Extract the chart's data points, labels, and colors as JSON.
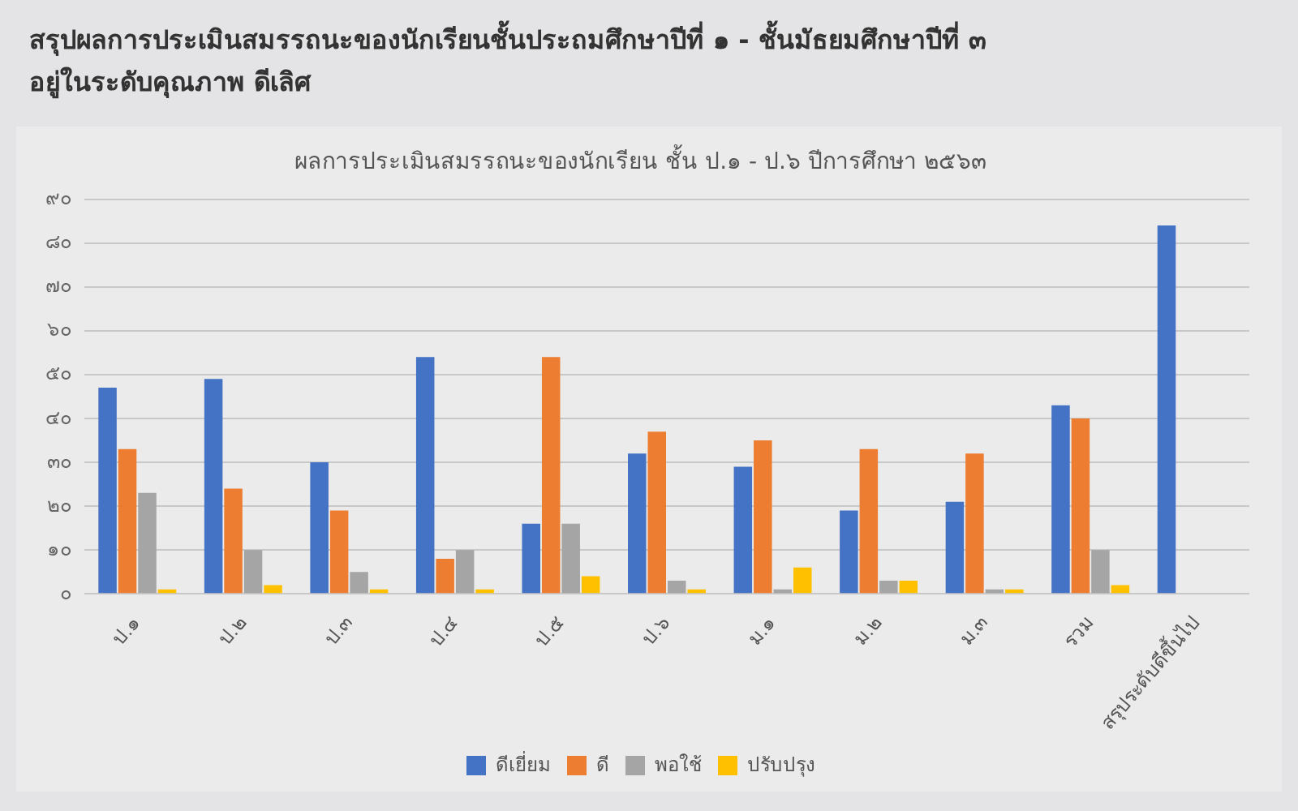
{
  "chart_data": {
    "type": "bar",
    "title": "ผลการประเมินสมรรถนะของนักเรียน ชั้น ป.๑ - ป.๖ ปีการศึกษา ๒๕๖๓",
    "annotations": [
      "สรุปผลการประเมินสมรรถนะของนักเรียนชั้นประถมศึกษาปีที่ ๑ - ชั้นมัธยมศึกษาปีที่ ๓",
      "อยู่ในระดับคุณภาพ ดีเลิศ"
    ],
    "categories": [
      "ป.๑",
      "ป.๒",
      "ป.๓",
      "ป.๔",
      "ป.๕",
      "ป.๖",
      "ม.๑",
      "ม.๒",
      "ม.๓",
      "รวม",
      "สรุประดับดีขึ้นไป"
    ],
    "series": [
      {
        "name": "ดีเยี่ยม",
        "color": "#4472c4",
        "values": [
          47,
          49,
          30,
          54,
          16,
          32,
          29,
          19,
          21,
          43,
          84
        ]
      },
      {
        "name": "ดี",
        "color": "#ed7d31",
        "values": [
          33,
          24,
          19,
          8,
          54,
          37,
          35,
          33,
          32,
          40,
          null
        ]
      },
      {
        "name": "พอใช้",
        "color": "#a5a5a5",
        "values": [
          23,
          10,
          5,
          10,
          16,
          3,
          1,
          3,
          1,
          10,
          null
        ]
      },
      {
        "name": "ปรับปรุง",
        "color": "#ffc000",
        "values": [
          1,
          2,
          1,
          1,
          4,
          1,
          6,
          3,
          1,
          2,
          null
        ]
      }
    ],
    "ylim": [
      0,
      90
    ],
    "yticks": [
      {
        "value": 0,
        "label": "๐"
      },
      {
        "value": 10,
        "label": "๑๐"
      },
      {
        "value": 20,
        "label": "๒๐"
      },
      {
        "value": 30,
        "label": "๓๐"
      },
      {
        "value": 40,
        "label": "๔๐"
      },
      {
        "value": 50,
        "label": "๕๐"
      },
      {
        "value": 60,
        "label": "๖๐"
      },
      {
        "value": 70,
        "label": "๗๐"
      },
      {
        "value": 80,
        "label": "๘๐"
      },
      {
        "value": 90,
        "label": "๙๐"
      }
    ],
    "grid": "y",
    "legend": "bottom"
  }
}
